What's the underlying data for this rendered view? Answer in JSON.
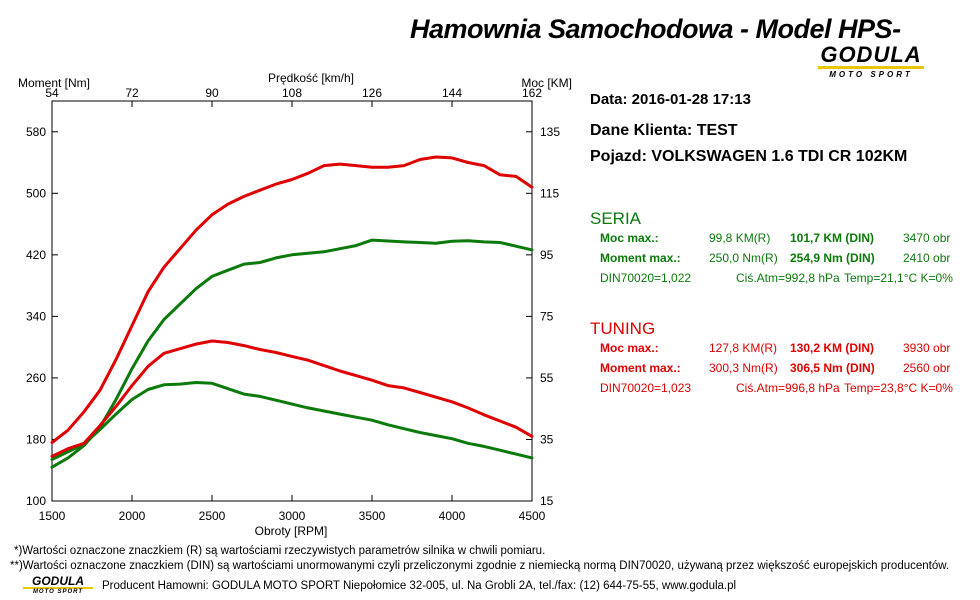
{
  "header": {
    "title": "Hamownia Samochodowa   -   Model HPS-",
    "logo_brand": "GODULA",
    "logo_sub": "MOTO SPORT"
  },
  "info": {
    "date": "Data: 2016-01-28  17:13",
    "client": "Dane Klienta: TEST",
    "vehicle": "Pojazd: VOLKSWAGEN 1.6 TDI CR 102KM"
  },
  "seria": {
    "title": "SERIA",
    "power_label": "Moc max.:",
    "power_r": "99,8 KM(R)",
    "power_din": "101,7 KM (DIN)",
    "power_rpm": "3470 obr",
    "torque_label": "Moment max.:",
    "torque_r": "250,0 Nm(R)",
    "torque_din": "254,9 Nm (DIN)",
    "torque_rpm": "2410 obr",
    "din": "DIN70020=1,022",
    "atm": "Ciś.Atm=992,8 hPa",
    "temp": "Temp=21,1°C  K=0%"
  },
  "tuning": {
    "title": "TUNING",
    "power_label": "Moc max.:",
    "power_r": "127,8 KM(R)",
    "power_din": "130,2 KM (DIN)",
    "power_rpm": "3930 obr",
    "torque_label": "Moment max.:",
    "torque_r": "300,3 Nm(R)",
    "torque_din": "306,5 Nm (DIN)",
    "torque_rpm": "2560 obr",
    "din": "DIN70020=1,023",
    "atm": "Ciś.Atm=996,8 hPa",
    "temp": "Temp=23,8°C  K=0%"
  },
  "footer": {
    "note1": "*)Wartości oznaczone znaczkiem (R) są wartościami rzeczywistych parametrów silnika w chwili pomiaru.",
    "note2": "**)Wartości oznaczone znaczkiem (DIN) są wartościami unormowanymi czyli przeliczonymi zgodnie z niemiecką normą DIN70020, używaną przez większość europejskich producentów.",
    "producer": "Producent Hamowni: GODULA MOTO SPORT Niepołomice 32-005, ul. Na Grobli 2A, tel./fax: (12) 644-75-55, www.godula.pl",
    "logo_brand": "GODULA",
    "logo_sub": "MOTO SPORT"
  },
  "colors": {
    "seria": "#0b7a0b",
    "tuning": "#e00000"
  },
  "chart_data": {
    "type": "line",
    "title": "",
    "xlabel": "Obroty [RPM]",
    "ylabel_left": "Moment [Nm]",
    "ylabel_right": "Moc [KM]",
    "top_axis_label": "Prędkość [km/h]",
    "xlim": [
      1500,
      4500
    ],
    "x_ticks": [
      1500,
      2000,
      2500,
      3000,
      3500,
      4000,
      4500
    ],
    "ylim_left": [
      100,
      620
    ],
    "y_ticks_left": [
      100,
      180,
      260,
      340,
      420,
      500,
      580
    ],
    "ylim_right": [
      15,
      145
    ],
    "y_ticks_right": [
      15,
      35,
      55,
      75,
      95,
      115,
      135
    ],
    "top_ticks": [
      54,
      72,
      90,
      108,
      126,
      144,
      162
    ],
    "grid": false,
    "series": [
      {
        "name": "SERIA",
        "quantity": "Moc",
        "axis": "right",
        "color": "#0b7a0b",
        "x": [
          1500,
          1600,
          1700,
          1800,
          1900,
          2000,
          2100,
          2200,
          2300,
          2400,
          2500,
          2600,
          2700,
          2800,
          2900,
          3000,
          3100,
          3200,
          3300,
          3400,
          3500,
          3600,
          3700,
          3800,
          3900,
          4000,
          4100,
          4200,
          4300,
          4400,
          4500
        ],
        "y": [
          26,
          29,
          33,
          39,
          48,
          58,
          67,
          74,
          79,
          84,
          88,
          90,
          92,
          92.5,
          94,
          95,
          95.5,
          96,
          97,
          98,
          99.8,
          99.5,
          99.2,
          99,
          98.8,
          99.4,
          99.6,
          99.2,
          99,
          97.8,
          96.6
        ]
      },
      {
        "name": "SERIA",
        "quantity": "Moment",
        "axis": "left",
        "color": "#0b7a0b",
        "x": [
          1500,
          1600,
          1700,
          1800,
          1900,
          2000,
          2100,
          2200,
          2300,
          2400,
          2500,
          2600,
          2700,
          2800,
          2900,
          3000,
          3100,
          3200,
          3300,
          3400,
          3500,
          3600,
          3700,
          3800,
          3900,
          4000,
          4100,
          4200,
          4300,
          4400,
          4500
        ],
        "y": [
          154,
          164,
          174,
          193,
          213,
          232,
          245,
          251,
          252,
          254,
          253,
          246,
          239,
          236,
          231,
          226,
          221,
          217,
          213,
          209,
          205,
          199,
          194,
          189,
          185,
          181,
          175,
          171,
          166,
          161,
          156
        ]
      },
      {
        "name": "TUNING",
        "quantity": "Moc",
        "axis": "right",
        "color": "#e00000",
        "x": [
          1500,
          1600,
          1700,
          1800,
          1900,
          2000,
          2100,
          2200,
          2300,
          2400,
          2500,
          2600,
          2700,
          2800,
          2900,
          3000,
          3100,
          3200,
          3300,
          3400,
          3500,
          3600,
          3700,
          3800,
          3900,
          4000,
          4100,
          4200,
          4300,
          4400,
          4500
        ],
        "y": [
          34,
          38,
          44,
          51,
          61,
          72,
          83,
          91,
          97,
          103,
          108,
          111.5,
          114,
          116,
          118,
          119.5,
          121.5,
          124,
          124.5,
          124,
          123.5,
          123.5,
          124,
          126,
          126.8,
          126.5,
          125,
          124,
          121,
          120.5,
          117
        ]
      },
      {
        "name": "TUNING",
        "quantity": "Moment",
        "axis": "left",
        "color": "#e00000",
        "x": [
          1500,
          1600,
          1700,
          1800,
          1900,
          2000,
          2100,
          2200,
          2300,
          2400,
          2500,
          2600,
          2700,
          2800,
          2900,
          3000,
          3100,
          3200,
          3300,
          3400,
          3500,
          3600,
          3700,
          3800,
          3900,
          4000,
          4100,
          4200,
          4300,
          4400,
          4500
        ],
        "y": [
          158,
          168,
          175,
          198,
          223,
          250,
          275,
          292,
          298,
          304,
          308,
          306,
          302,
          297,
          293,
          288,
          283,
          276,
          269,
          263,
          257,
          250,
          247,
          241,
          235,
          229,
          221,
          212,
          204,
          196,
          184
        ]
      }
    ]
  }
}
